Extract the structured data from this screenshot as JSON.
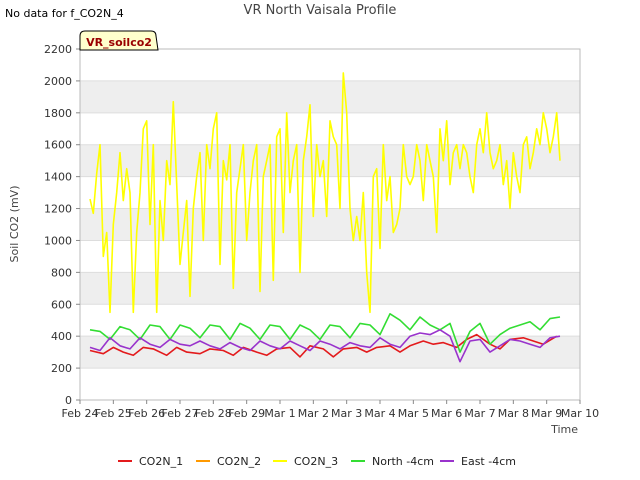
{
  "no_data_note": "No data for f_CO2N_4",
  "chart_data": {
    "type": "line",
    "title": "VR North Vaisala Profile",
    "xlabel": "Time",
    "ylabel": "Soil CO2 (mV)",
    "ylim": [
      0,
      2200
    ],
    "yticks": [
      0,
      200,
      400,
      600,
      800,
      1000,
      1200,
      1400,
      1600,
      1800,
      2000,
      2200
    ],
    "xlim": [
      0,
      15
    ],
    "xticks": [
      0,
      1,
      2,
      3,
      4,
      5,
      6,
      7,
      8,
      9,
      10,
      11,
      12,
      13,
      14,
      15
    ],
    "xtick_labels": [
      "Feb 24",
      "Feb 25",
      "Feb 26",
      "Feb 27",
      "Feb 28",
      "Feb 29",
      "Mar 1",
      "Mar 2",
      "Mar 3",
      "Mar 4",
      "Mar 5",
      "Mar 6",
      "Mar 7",
      "Mar 8",
      "Mar 9",
      "Mar 10"
    ],
    "grid": "horizontal bands",
    "legend_placement": "bottom",
    "badge": "VR_soilco2",
    "series": [
      {
        "name": "CO2N_1",
        "color": "#e31a1c",
        "x": [
          0.3,
          0.7,
          1.0,
          1.3,
          1.6,
          1.9,
          2.2,
          2.6,
          2.9,
          3.2,
          3.6,
          3.9,
          4.3,
          4.6,
          4.9,
          5.3,
          5.6,
          5.9,
          6.3,
          6.6,
          6.9,
          7.3,
          7.6,
          7.9,
          8.3,
          8.6,
          8.9,
          9.3,
          9.6,
          9.9,
          10.3,
          10.6,
          10.9,
          11.3,
          11.6,
          11.9,
          12.3,
          12.6,
          12.9,
          13.3,
          13.6,
          13.9,
          14.3
        ],
        "values": [
          310,
          290,
          330,
          300,
          280,
          330,
          320,
          280,
          330,
          300,
          290,
          320,
          310,
          280,
          330,
          300,
          280,
          320,
          330,
          270,
          340,
          320,
          270,
          320,
          330,
          300,
          330,
          340,
          300,
          340,
          370,
          350,
          360,
          330,
          380,
          410,
          350,
          320,
          380,
          390,
          370,
          350,
          400
        ]
      },
      {
        "name": "CO2N_2",
        "color": "#ff9900",
        "x": [],
        "values": []
      },
      {
        "name": "CO2N_3",
        "color": "#ffff00",
        "x": [
          0.3,
          0.4,
          0.5,
          0.6,
          0.7,
          0.8,
          0.9,
          1.0,
          1.1,
          1.2,
          1.3,
          1.4,
          1.5,
          1.6,
          1.7,
          1.8,
          1.9,
          2.0,
          2.1,
          2.2,
          2.3,
          2.4,
          2.5,
          2.6,
          2.7,
          2.8,
          2.9,
          3.0,
          3.1,
          3.2,
          3.3,
          3.4,
          3.5,
          3.6,
          3.7,
          3.8,
          3.9,
          4.0,
          4.1,
          4.2,
          4.3,
          4.4,
          4.5,
          4.6,
          4.7,
          4.8,
          4.9,
          5.0,
          5.1,
          5.2,
          5.3,
          5.4,
          5.5,
          5.6,
          5.7,
          5.8,
          5.9,
          6.0,
          6.1,
          6.2,
          6.3,
          6.4,
          6.5,
          6.6,
          6.7,
          6.8,
          6.9,
          7.0,
          7.1,
          7.2,
          7.3,
          7.4,
          7.5,
          7.6,
          7.7,
          7.8,
          7.9,
          8.0,
          8.1,
          8.2,
          8.3,
          8.4,
          8.5,
          8.6,
          8.7,
          8.8,
          8.9,
          9.0,
          9.1,
          9.2,
          9.3,
          9.4,
          9.5,
          9.6,
          9.7,
          9.8,
          9.9,
          10.0,
          10.1,
          10.2,
          10.3,
          10.4,
          10.5,
          10.6,
          10.7,
          10.8,
          10.9,
          11.0,
          11.1,
          11.2,
          11.3,
          11.4,
          11.5,
          11.6,
          11.7,
          11.8,
          11.9,
          12.0,
          12.1,
          12.2,
          12.3,
          12.4,
          12.5,
          12.6,
          12.7,
          12.8,
          12.9,
          13.0,
          13.1,
          13.2,
          13.3,
          13.4,
          13.5,
          13.6,
          13.7,
          13.8,
          13.9,
          14.0,
          14.1,
          14.2,
          14.3,
          14.4
        ],
        "values": [
          1260,
          1170,
          1420,
          1600,
          900,
          1050,
          550,
          1100,
          1300,
          1550,
          1250,
          1450,
          1300,
          550,
          1050,
          1300,
          1700,
          1750,
          1100,
          1600,
          550,
          1250,
          1000,
          1500,
          1350,
          1870,
          1350,
          850,
          1050,
          1250,
          650,
          1200,
          1400,
          1550,
          1000,
          1600,
          1450,
          1700,
          1800,
          850,
          1500,
          1380,
          1600,
          700,
          1300,
          1450,
          1600,
          1000,
          1300,
          1500,
          1600,
          680,
          1400,
          1500,
          1600,
          750,
          1650,
          1700,
          1050,
          1800,
          1300,
          1500,
          1600,
          800,
          1500,
          1650,
          1850,
          1150,
          1600,
          1400,
          1500,
          1150,
          1750,
          1650,
          1600,
          1200,
          2050,
          1800,
          1200,
          1000,
          1150,
          1000,
          1300,
          800,
          550,
          1400,
          1450,
          950,
          1600,
          1250,
          1400,
          1050,
          1100,
          1200,
          1600,
          1400,
          1350,
          1400,
          1600,
          1500,
          1250,
          1600,
          1500,
          1400,
          1050,
          1700,
          1500,
          1750,
          1350,
          1550,
          1600,
          1450,
          1600,
          1550,
          1400,
          1300,
          1600,
          1700,
          1550,
          1800,
          1550,
          1450,
          1500,
          1600,
          1350,
          1500,
          1200,
          1550,
          1400,
          1300,
          1600,
          1650,
          1450,
          1550,
          1700,
          1600,
          1800,
          1700,
          1550,
          1650,
          1800,
          1500
        ]
      },
      {
        "name": "North -4cm",
        "color": "#33dd33",
        "x": [
          0.3,
          0.6,
          0.9,
          1.2,
          1.5,
          1.8,
          2.1,
          2.4,
          2.7,
          3.0,
          3.3,
          3.6,
          3.9,
          4.2,
          4.5,
          4.8,
          5.1,
          5.4,
          5.7,
          6.0,
          6.3,
          6.6,
          6.9,
          7.2,
          7.5,
          7.8,
          8.1,
          8.4,
          8.7,
          9.0,
          9.3,
          9.6,
          9.9,
          10.2,
          10.5,
          10.8,
          11.1,
          11.4,
          11.7,
          12.0,
          12.3,
          12.6,
          12.9,
          13.2,
          13.5,
          13.8,
          14.1,
          14.4
        ],
        "values": [
          440,
          430,
          380,
          460,
          440,
          380,
          470,
          460,
          380,
          470,
          450,
          390,
          470,
          460,
          380,
          480,
          450,
          380,
          470,
          460,
          380,
          470,
          440,
          380,
          470,
          460,
          390,
          480,
          470,
          410,
          540,
          500,
          440,
          520,
          470,
          440,
          480,
          300,
          430,
          480,
          350,
          410,
          450,
          470,
          490,
          440,
          510,
          520
        ]
      },
      {
        "name": "East -4cm",
        "color": "#9933cc",
        "x": [
          0.3,
          0.6,
          0.9,
          1.2,
          1.5,
          1.8,
          2.1,
          2.4,
          2.7,
          3.0,
          3.3,
          3.6,
          3.9,
          4.2,
          4.5,
          4.8,
          5.1,
          5.4,
          5.7,
          6.0,
          6.3,
          6.6,
          6.9,
          7.2,
          7.5,
          7.8,
          8.1,
          8.4,
          8.7,
          9.0,
          9.3,
          9.6,
          9.9,
          10.2,
          10.5,
          10.8,
          11.1,
          11.4,
          11.7,
          12.0,
          12.3,
          12.6,
          12.9,
          13.2,
          13.5,
          13.8,
          14.1,
          14.4
        ],
        "values": [
          330,
          310,
          390,
          340,
          320,
          390,
          350,
          330,
          380,
          350,
          340,
          370,
          340,
          320,
          360,
          330,
          310,
          370,
          340,
          320,
          370,
          340,
          310,
          370,
          350,
          320,
          360,
          340,
          330,
          390,
          350,
          330,
          400,
          420,
          410,
          440,
          400,
          240,
          370,
          380,
          300,
          340,
          380,
          370,
          350,
          330,
          390,
          400
        ]
      }
    ]
  }
}
